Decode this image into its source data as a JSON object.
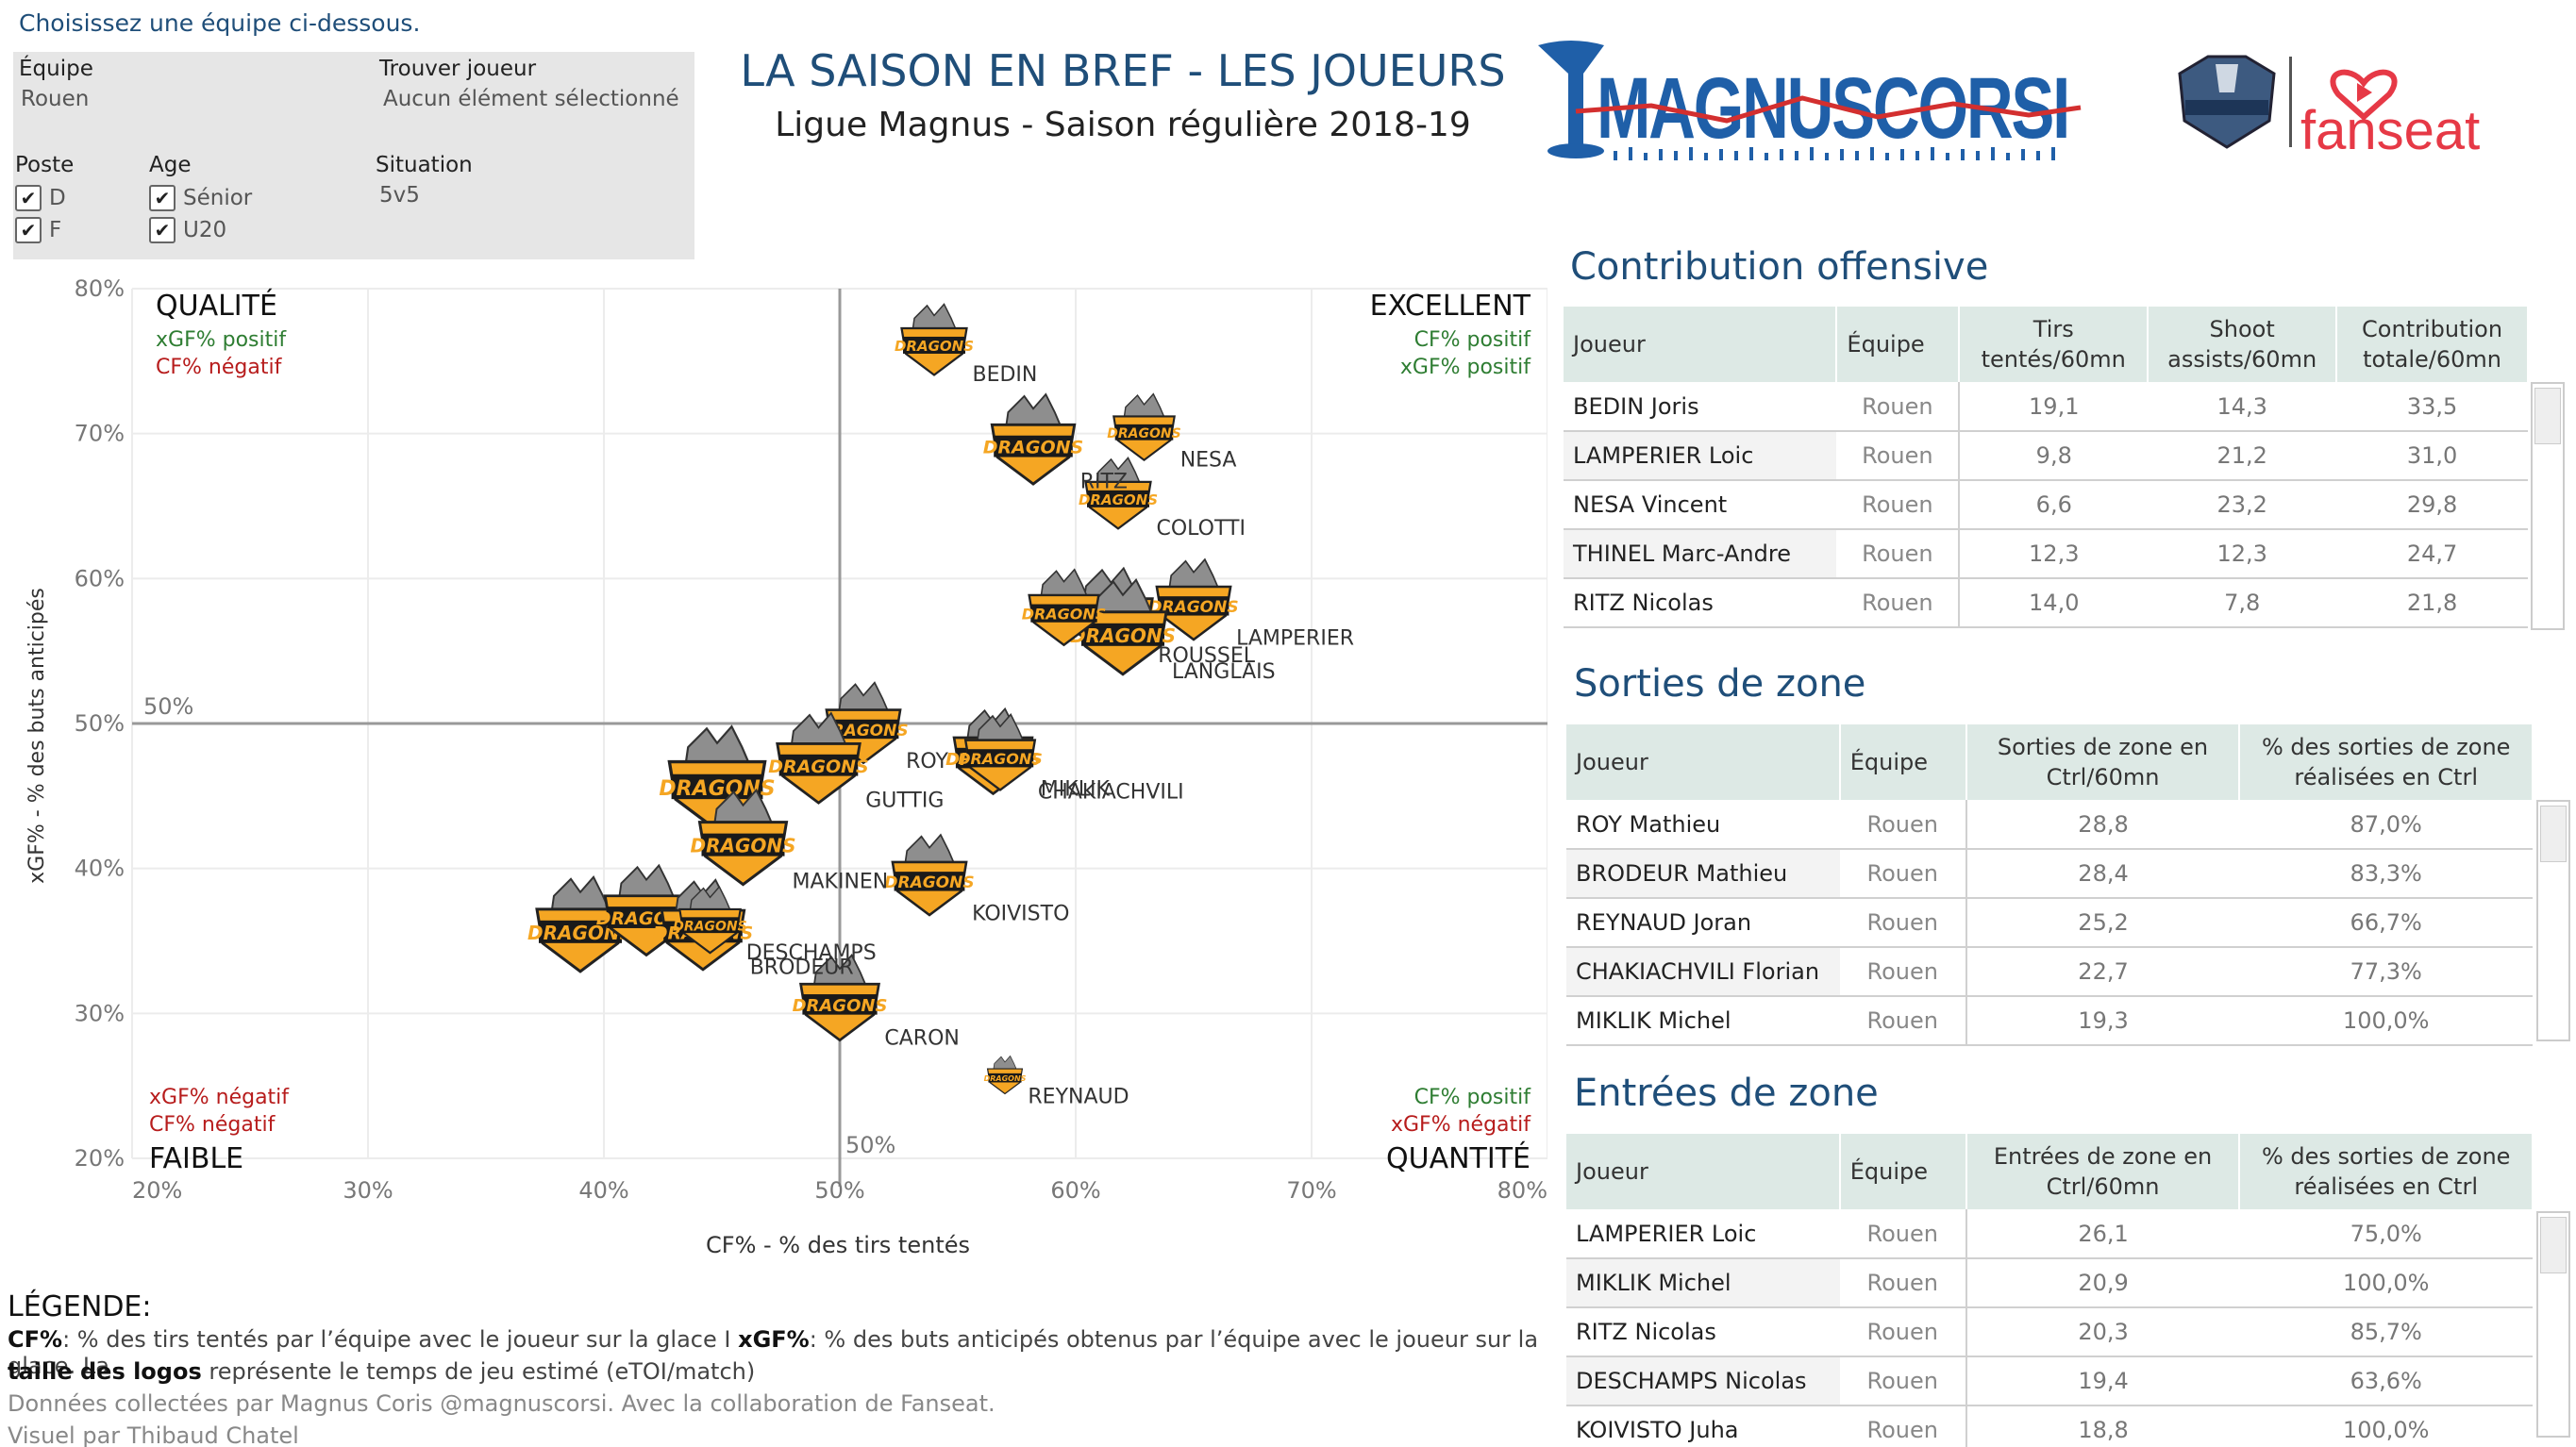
{
  "filters": {
    "hint": "Choisissez une équipe ci-dessous.",
    "team_label": "Équipe",
    "team_value": "Rouen",
    "player_label": "Trouver joueur",
    "player_value": "Aucun élément sélectionné",
    "position_label": "Poste",
    "position_options": [
      "D",
      "F"
    ],
    "age_label": "Age",
    "age_options": [
      "Sénior",
      "U20"
    ],
    "situation_label": "Situation",
    "situation_value": "5v5"
  },
  "header": {
    "title": "LA SAISON EN BREF - LES JOUEURS",
    "subtitle": "Ligue Magnus - Saison régulière 2018-19",
    "logo_magnuscorsi": "MAGNUSCORSI",
    "logo_fanseat": "fanseat"
  },
  "chart_data": {
    "type": "scatter",
    "xlabel": "CF% - % des tirs tentés",
    "ylabel": "xGF% - % des buts anticipés",
    "xlim": [
      20,
      80
    ],
    "ylim": [
      20,
      80
    ],
    "x_ticks": [
      "20%",
      "30%",
      "40%",
      "50%",
      "60%",
      "70%",
      "80%"
    ],
    "y_ticks": [
      "20%",
      "30%",
      "40%",
      "50%",
      "60%",
      "70%",
      "80%"
    ],
    "ref_x_label": "50%",
    "ref_y_label": "50%",
    "marker": "DRAGONS",
    "quadrants": {
      "top_left": {
        "title": "QUALITÉ",
        "l1": "xGF% positif",
        "l2": "CF% négatif"
      },
      "top_right": {
        "title": "EXCELLENT",
        "l1": "CF% positif",
        "l2": "xGF% positif"
      },
      "bottom_left": {
        "title": "FAIBLE",
        "l1": "xGF% négatif",
        "l2": "CF% négatif"
      },
      "bottom_right": {
        "title": "QUANTITÉ",
        "l1": "CF% positif",
        "l2": "xGF% négatif"
      }
    },
    "points": [
      {
        "label": "BEDIN",
        "x": 54.0,
        "y": 76.0,
        "size": 0.75
      },
      {
        "label": "RITZ",
        "x": 58.2,
        "y": 69.0,
        "size": 0.95
      },
      {
        "label": "NESA",
        "x": 62.9,
        "y": 70.0,
        "size": 0.7
      },
      {
        "label": "COLOTTI",
        "x": 61.8,
        "y": 65.4,
        "size": 0.75
      },
      {
        "label": "LAMPERIER",
        "x": 65.0,
        "y": 58.0,
        "size": 0.85
      },
      {
        "label": "ROUSSEL",
        "x": 61.5,
        "y": 57.0,
        "size": 0.95
      },
      {
        "label": "LANGLAIS",
        "x": 62.0,
        "y": 56.0,
        "size": 1.0
      },
      {
        "label": "",
        "x": 59.5,
        "y": 57.5,
        "size": 0.8
      },
      {
        "label": "ROY",
        "x": 51.0,
        "y": 49.5,
        "size": 0.85
      },
      {
        "label": "CHAKIACHVILI",
        "x": 56.5,
        "y": 47.5,
        "size": 0.9
      },
      {
        "label": "MIKLIK",
        "x": 56.8,
        "y": 47.5,
        "size": 0.8
      },
      {
        "label": "GUTTIG",
        "x": 49.1,
        "y": 47.0,
        "size": 0.95
      },
      {
        "label": "",
        "x": 44.8,
        "y": 45.5,
        "size": 1.1
      },
      {
        "label": "MAKINEN",
        "x": 45.9,
        "y": 41.5,
        "size": 1.0
      },
      {
        "label": "KOIVISTO",
        "x": 53.8,
        "y": 39.0,
        "size": 0.85
      },
      {
        "label": "",
        "x": 39.0,
        "y": 35.5,
        "size": 1.0
      },
      {
        "label": "",
        "x": 41.8,
        "y": 36.5,
        "size": 0.95
      },
      {
        "label": "BRODEUR",
        "x": 44.2,
        "y": 35.5,
        "size": 0.95
      },
      {
        "label": "DESCHAMPS",
        "x": 44.5,
        "y": 36.0,
        "size": 0.7
      },
      {
        "label": "CARON",
        "x": 50.0,
        "y": 30.5,
        "size": 0.9
      },
      {
        "label": "REYNAUD",
        "x": 57.0,
        "y": 25.5,
        "size": 0.4
      }
    ]
  },
  "legend": {
    "title": "LÉGENDE:",
    "cf_term": "CF%",
    "cf_text": ": % des tirs tentés par l’équipe avec le joueur sur la glace I",
    "xgf_term": "xGF%",
    "xgf_text": ": % des buts anticipés obtenus par l’équipe avec le joueur sur la glace. La",
    "size_term": "taille des logos",
    "size_text": "représente le temps de jeu estimé (eTOI/match)",
    "credits": "Données collectées par Magnus Coris @magnuscorsi. Avec la collaboration de Fanseat.",
    "author": "Visuel par Thibaud Chatel"
  },
  "offense": {
    "title": "Contribution offensive",
    "headers": [
      "Joueur",
      "Équipe",
      "Tirs tentés/60mn",
      "Shoot assists/60mn",
      "Contribution totale/60mn"
    ],
    "rows": [
      [
        "BEDIN  Joris",
        "Rouen",
        "19,1",
        "14,3",
        "33,5"
      ],
      [
        "LAMPERIER  Loic",
        "Rouen",
        "9,8",
        "21,2",
        "31,0"
      ],
      [
        "NESA  Vincent",
        "Rouen",
        "6,6",
        "23,2",
        "29,8"
      ],
      [
        "THINEL  Marc-Andre",
        "Rouen",
        "12,3",
        "12,3",
        "24,7"
      ],
      [
        "RITZ  Nicolas",
        "Rouen",
        "14,0",
        "7,8",
        "21,8"
      ]
    ]
  },
  "exits": {
    "title": "Sorties de zone",
    "headers": [
      "Joueur",
      "Équipe",
      "Sorties de zone en Ctrl/60mn",
      "% des sorties de zone réalisées en Ctrl"
    ],
    "rows": [
      [
        "ROY  Mathieu",
        "Rouen",
        "28,8",
        "87,0%"
      ],
      [
        "BRODEUR  Mathieu",
        "Rouen",
        "28,4",
        "83,3%"
      ],
      [
        "REYNAUD  Joran",
        "Rouen",
        "25,2",
        "66,7%"
      ],
      [
        "CHAKIACHVILI  Florian",
        "Rouen",
        "22,7",
        "77,3%"
      ],
      [
        "MIKLIK  Michel",
        "Rouen",
        "19,3",
        "100,0%"
      ]
    ]
  },
  "entries": {
    "title": "Entrées de zone",
    "headers": [
      "Joueur",
      "Équipe",
      "Entrées de zone en Ctrl/60mn",
      "% des sorties de zone réalisées en Ctrl"
    ],
    "rows": [
      [
        "LAMPERIER  Loic",
        "Rouen",
        "26,1",
        "75,0%"
      ],
      [
        "MIKLIK  Michel",
        "Rouen",
        "20,9",
        "100,0%"
      ],
      [
        "RITZ  Nicolas",
        "Rouen",
        "20,3",
        "85,7%"
      ],
      [
        "DESCHAMPS  Nicolas",
        "Rouen",
        "19,4",
        "63,6%"
      ],
      [
        "KOIVISTO  Juha",
        "Rouen",
        "18,8",
        "100,0%"
      ]
    ]
  },
  "colors": {
    "title_blue": "#1f4e79",
    "positive_green": "#2e7d32",
    "negative_red": "#b71c1c",
    "header_teal": "#dde9e5",
    "dragon_orange": "#f5a623",
    "magnus_blue": "#1f5fa8"
  }
}
